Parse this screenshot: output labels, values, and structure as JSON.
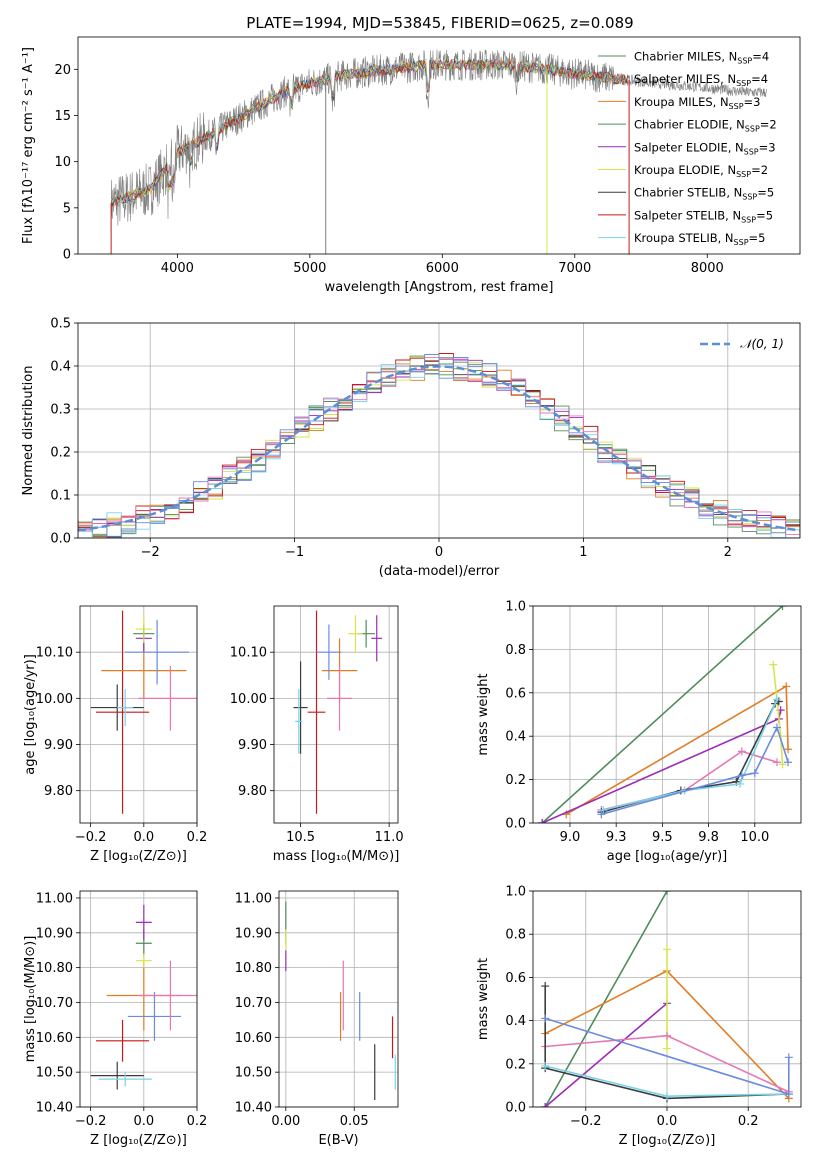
{
  "colors": [
    "#5b8a66",
    "#e07e28",
    "#7f7f7f",
    "#4f8c5d",
    "#9c2bb8",
    "#d6e64a",
    "#3c3c3c",
    "#c41a1a",
    "#79d3e8",
    "#e677b4",
    "#6b8be0"
  ],
  "chart_data": [
    {
      "type": "line",
      "title": "PLATE=1994, MJD=53845, FIBERID=0625, z=0.089",
      "xlabel": "wavelength [Angstrom, rest frame]",
      "ylabel": "Flux [fλ10⁻¹⁷ erg cm⁻² s⁻¹ A⁻¹]",
      "xlim": [
        3250,
        8700
      ],
      "ylim": [
        0,
        23.5
      ],
      "xticks": [
        4000,
        5000,
        6000,
        7000,
        8000
      ],
      "yticks": [
        0,
        5,
        10,
        15,
        20
      ],
      "grid": false,
      "legend_position": "upper-right",
      "legend": [
        "Chabrier MILES, N_SSP=4",
        "Salpeter MILES, N_SSP=4",
        "Kroupa MILES, N_SSP=3",
        "Chabrier ELODIE, N_SSP=2",
        "Salpeter ELODIE, N_SSP=3",
        "Kroupa ELODIE, N_SSP=2",
        "Chabrier STELIB, N_SSP=5",
        "Salpeter STELIB, N_SSP=5",
        "Kroupa STELIB, N_SSP=5"
      ],
      "continuum": {
        "x": [
          3500,
          3800,
          4000,
          4200,
          4500,
          4800,
          5000,
          5300,
          5600,
          5900,
          6200,
          6500,
          6800,
          7000,
          7300,
          7600,
          8000,
          8300,
          8450
        ],
        "y": [
          5.5,
          7,
          11,
          12.5,
          15,
          17.5,
          18.5,
          19.5,
          20,
          20.5,
          20.5,
          20.5,
          20,
          19.5,
          19,
          18.5,
          18,
          17.5,
          17.5
        ]
      }
    },
    {
      "type": "histogram",
      "xlabel": "(data-model)/error",
      "ylabel": "Normed distribution",
      "xlim": [
        -2.5,
        2.5
      ],
      "ylim": [
        0,
        0.5
      ],
      "xticks": [
        -2,
        -1,
        0,
        1,
        2
      ],
      "yticks": [
        0.0,
        0.1,
        0.2,
        0.3,
        0.4,
        0.5
      ],
      "grid": true,
      "legend": [
        "𝒩(0, 1)"
      ],
      "legend_position": "upper-right"
    },
    {
      "type": "scatter",
      "subtype": "errorbar",
      "xlabel": "Z [log₁₀(Z/Z⊙)]",
      "ylabel": "age  [log₁₀(age/yr)]",
      "xlim": [
        -0.24,
        0.2
      ],
      "ylim": [
        9.73,
        10.2
      ],
      "xticks": [
        -0.2,
        0.0,
        0.2
      ],
      "yticks": [
        9.8,
        9.9,
        10.0,
        10.1
      ],
      "grid": true,
      "points": [
        {
          "x": -0.1,
          "y": 9.98,
          "xerr": 0.1,
          "yerr": 0.05
        },
        {
          "x": -0.08,
          "y": 9.97,
          "xerr": 0.1,
          "yerr": 0.22
        },
        {
          "x": 0.0,
          "y": 10.06,
          "xerr": 0.16,
          "yerr": 0.06
        },
        {
          "x": 0.0,
          "y": 10.14,
          "xerr": 0.04,
          "yerr": 0.01
        },
        {
          "x": 0.0,
          "y": 10.13,
          "xerr": 0.03,
          "yerr": 0.03
        },
        {
          "x": 0.05,
          "y": 10.1,
          "xerr": 0.12,
          "yerr": 0.07
        },
        {
          "x": 0.1,
          "y": 10.0,
          "xerr": 0.12,
          "yerr": 0.07
        },
        {
          "x": -0.07,
          "y": 9.98,
          "xerr": 0.03,
          "yerr": 0.04
        },
        {
          "x": 0.0,
          "y": 10.15,
          "xerr": 0.03,
          "yerr": 0.03
        }
      ]
    },
    {
      "type": "scatter",
      "subtype": "errorbar",
      "xlabel": "mass [log₁₀(M/M⊙)]",
      "ylabel": "",
      "xlim": [
        10.35,
        11.05
      ],
      "ylim": [
        9.73,
        10.2
      ],
      "xticks": [
        10.5,
        11.0
      ],
      "yticks": [
        9.8,
        9.9,
        10.0,
        10.1
      ],
      "grid": true,
      "points": [
        {
          "x": 10.5,
          "y": 9.98,
          "xerr": 0.04,
          "yerr": 0.1
        },
        {
          "x": 10.59,
          "y": 9.97,
          "xerr": 0.05,
          "yerr": 0.22
        },
        {
          "x": 10.72,
          "y": 10.06,
          "xerr": 0.1,
          "yerr": 0.07
        },
        {
          "x": 10.87,
          "y": 10.14,
          "xerr": 0.05,
          "yerr": 0.03
        },
        {
          "x": 10.93,
          "y": 10.13,
          "xerr": 0.03,
          "yerr": 0.05
        },
        {
          "x": 10.66,
          "y": 10.1,
          "xerr": 0.07,
          "yerr": 0.06
        },
        {
          "x": 10.72,
          "y": 10.0,
          "xerr": 0.07,
          "yerr": 0.07
        },
        {
          "x": 10.49,
          "y": 9.95,
          "xerr": 0.02,
          "yerr": 0.07
        },
        {
          "x": 10.81,
          "y": 10.14,
          "xerr": 0.04,
          "yerr": 0.04
        }
      ]
    },
    {
      "type": "line",
      "xlabel": "age  [log₁₀(age/yr)]",
      "ylabel": "mass weight",
      "xlim": [
        8.8,
        10.25
      ],
      "ylim": [
        0,
        1.0
      ],
      "xticks": [
        9.0,
        9.25,
        9.5,
        9.75,
        10.0
      ],
      "yticks": [
        0.0,
        0.2,
        0.4,
        0.6,
        0.8,
        1.0
      ],
      "grid": true,
      "series": [
        {
          "x": [
            8.85,
            10.15
          ],
          "y": [
            0.0,
            1.0
          ]
        },
        {
          "x": [
            8.98,
            10.17,
            10.18
          ],
          "y": [
            0.04,
            0.63,
            0.34
          ]
        },
        {
          "x": [
            8.85,
            10.13,
            10.14
          ],
          "y": [
            0.0,
            0.48,
            0.52
          ]
        },
        {
          "x": [
            10.1,
            10.14,
            10.15
          ],
          "y": [
            0.73,
            0.4,
            0.27
          ]
        },
        {
          "x": [
            9.17,
            9.62,
            9.93,
            10.12
          ],
          "y": [
            0.06,
            0.15,
            0.33,
            0.28
          ]
        },
        {
          "x": [
            9.17,
            9.6,
            9.9,
            10.11,
            10.13
          ],
          "y": [
            0.05,
            0.15,
            0.19,
            0.55,
            0.56
          ]
        },
        {
          "x": [
            9.18,
            9.62,
            9.92,
            10.12
          ],
          "y": [
            0.06,
            0.15,
            0.18,
            0.57
          ]
        },
        {
          "x": [
            9.17,
            9.93,
            10.0,
            10.12,
            10.18
          ],
          "y": [
            0.04,
            0.22,
            0.23,
            0.44,
            0.28
          ]
        }
      ]
    },
    {
      "type": "scatter",
      "subtype": "errorbar",
      "xlabel": "Z [log₁₀(Z/Z⊙)]",
      "ylabel": "mass [log₁₀(M/M⊙)]",
      "xlim": [
        -0.24,
        0.2
      ],
      "ylim": [
        10.4,
        11.02
      ],
      "xticks": [
        -0.2,
        0.0,
        0.2
      ],
      "yticks": [
        10.4,
        10.5,
        10.6,
        10.7,
        10.8,
        10.9,
        11.0
      ],
      "grid": true,
      "points": [
        {
          "x": -0.1,
          "y": 10.49,
          "xerr": 0.1,
          "yerr": 0.04
        },
        {
          "x": -0.08,
          "y": 10.59,
          "xerr": 0.1,
          "yerr": 0.06
        },
        {
          "x": 0.0,
          "y": 10.72,
          "xerr": 0.14,
          "yerr": 0.1
        },
        {
          "x": 0.0,
          "y": 10.87,
          "xerr": 0.03,
          "yerr": 0.04
        },
        {
          "x": 0.0,
          "y": 10.93,
          "xerr": 0.03,
          "yerr": 0.05
        },
        {
          "x": 0.04,
          "y": 10.66,
          "xerr": 0.1,
          "yerr": 0.07
        },
        {
          "x": 0.1,
          "y": 10.72,
          "xerr": 0.12,
          "yerr": 0.1
        },
        {
          "x": -0.07,
          "y": 10.48,
          "xerr": 0.1,
          "yerr": 0.02
        },
        {
          "x": 0.0,
          "y": 10.82,
          "xerr": 0.03,
          "yerr": 0.02
        }
      ]
    },
    {
      "type": "scatter",
      "subtype": "errorbar",
      "xlabel": "E(B-V)",
      "ylabel": "",
      "xlim": [
        -0.005,
        0.082
      ],
      "ylim": [
        10.4,
        11.02
      ],
      "xticks": [
        0.0,
        0.05
      ],
      "yticks": [
        10.4,
        10.5,
        10.6,
        10.7,
        10.8,
        10.9,
        11.0
      ],
      "grid": true,
      "points": [
        {
          "x": 0.065,
          "y": 10.5,
          "yerr": 0.08
        },
        {
          "x": 0.078,
          "y": 10.6,
          "yerr": 0.06
        },
        {
          "x": 0.04,
          "y": 10.66,
          "yerr": 0.07
        },
        {
          "x": 0.0,
          "y": 10.93,
          "yerr": 0.06
        },
        {
          "x": 0.0,
          "y": 10.82,
          "yerr": 0.03
        },
        {
          "x": 0.054,
          "y": 10.66,
          "yerr": 0.07
        },
        {
          "x": 0.042,
          "y": 10.72,
          "yerr": 0.1
        },
        {
          "x": 0.08,
          "y": 10.5,
          "yerr": 0.05
        },
        {
          "x": 0.0,
          "y": 10.88,
          "yerr": 0.03
        }
      ]
    },
    {
      "type": "line",
      "xlabel": "Z [log₁₀(Z/Z⊙)]",
      "ylabel": "mass weight",
      "xlim": [
        -0.33,
        0.33
      ],
      "ylim": [
        0,
        1.0
      ],
      "xticks": [
        -0.2,
        0.0,
        0.2
      ],
      "yticks": [
        0.0,
        0.2,
        0.4,
        0.6,
        0.8,
        1.0
      ],
      "grid": true,
      "series": [
        {
          "x": [
            -0.3,
            0.0
          ],
          "y": [
            0.0,
            1.0
          ]
        },
        {
          "x": [
            -0.3,
            0.0,
            0.3
          ],
          "y": [
            0.34,
            0.63,
            0.04
          ]
        },
        {
          "x": [
            -0.3,
            0.0
          ],
          "y": [
            0.0,
            0.48
          ]
        },
        {
          "x": [
            0.0,
            0.0
          ],
          "y": [
            0.73,
            0.27
          ]
        },
        {
          "x": [
            -0.3,
            0.0,
            0.3
          ],
          "y": [
            0.28,
            0.33,
            0.07
          ]
        },
        {
          "x": [
            -0.3,
            -0.3,
            0.0,
            0.3
          ],
          "y": [
            0.56,
            0.18,
            0.04,
            0.06
          ]
        },
        {
          "x": [
            -0.3,
            0.0,
            0.3
          ],
          "y": [
            0.19,
            0.05,
            0.06
          ]
        },
        {
          "x": [
            -0.3,
            0.3,
            0.3
          ],
          "y": [
            0.41,
            0.06,
            0.23
          ]
        }
      ]
    }
  ]
}
